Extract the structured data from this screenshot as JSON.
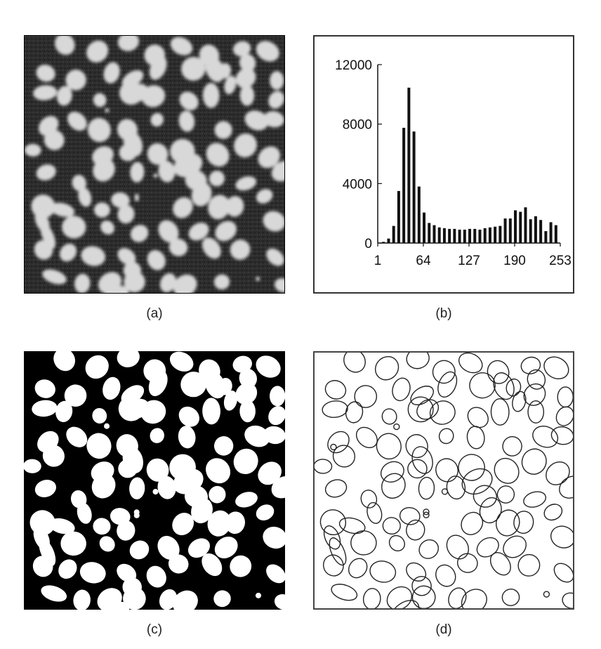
{
  "captions": {
    "a": "(a)",
    "b": "(b)",
    "c": "(c)",
    "d": "(d)"
  },
  "colors": {
    "background": "#ffffff",
    "bar": "#111111",
    "grain_gray": "#d8d8d8",
    "matrix_gray": "#2a2a2a"
  },
  "chart_data": {
    "type": "bar",
    "title": "",
    "xlabel": "",
    "ylabel": "",
    "x_tick_labels": [
      "1",
      "64",
      "127",
      "190",
      "253"
    ],
    "x_ticks": [
      1,
      64,
      127,
      190,
      253
    ],
    "y_tick_labels": [
      "0",
      "4000",
      "8000",
      "12000"
    ],
    "y_ticks": [
      0,
      4000,
      8000,
      12000
    ],
    "xlim": [
      1,
      253
    ],
    "ylim": [
      0,
      12000
    ],
    "x": [
      9,
      16,
      23,
      30,
      37,
      44,
      51,
      58,
      65,
      72,
      79,
      86,
      93,
      100,
      107,
      114,
      121,
      128,
      135,
      142,
      149,
      156,
      163,
      170,
      177,
      184,
      191,
      198,
      205,
      212,
      219,
      226,
      233,
      240,
      247
    ],
    "values": [
      80,
      300,
      1150,
      3500,
      7750,
      10450,
      7500,
      3800,
      2050,
      1350,
      1200,
      1050,
      1000,
      950,
      950,
      900,
      900,
      950,
      950,
      900,
      1000,
      1050,
      1100,
      1150,
      1650,
      1650,
      2200,
      2100,
      2400,
      1600,
      1800,
      1550,
      800,
      1400,
      1200
    ]
  }
}
